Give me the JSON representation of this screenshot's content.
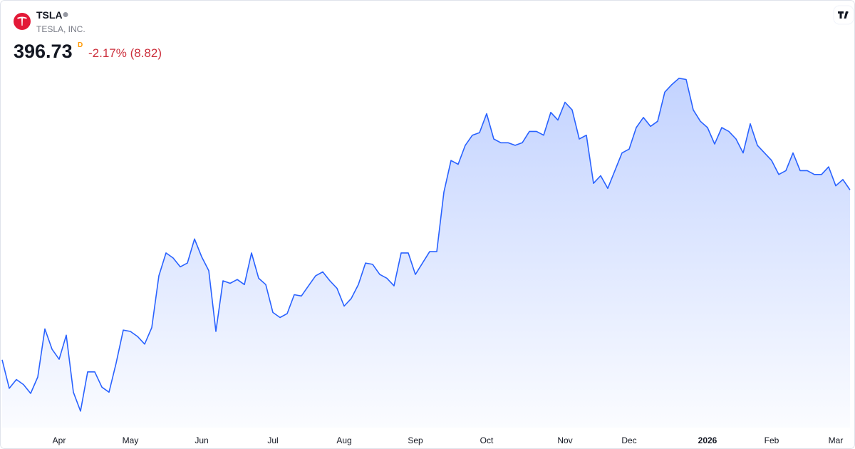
{
  "header": {
    "symbol": "TSLA",
    "name": "TESLA, INC.",
    "price": "396.73",
    "interval": "D",
    "change": "-2.17% (8.82)"
  },
  "chart_data": {
    "type": "area",
    "color": "#2962ff",
    "categories": [
      null,
      null,
      null,
      null,
      null,
      null,
      null,
      null,
      "Apr",
      null,
      null,
      null,
      null,
      null,
      null,
      null,
      null,
      null,
      "May",
      null,
      null,
      null,
      null,
      null,
      null,
      null,
      null,
      null,
      "Jun",
      null,
      null,
      null,
      null,
      null,
      null,
      null,
      null,
      null,
      "Jul",
      null,
      null,
      null,
      null,
      null,
      null,
      null,
      null,
      null,
      "Aug",
      null,
      null,
      null,
      null,
      null,
      null,
      null,
      null,
      null,
      "Sep",
      null,
      null,
      null,
      null,
      null,
      null,
      null,
      null,
      null,
      "Oct",
      null,
      null,
      null,
      null,
      null,
      null,
      null,
      null,
      null,
      null,
      "Nov",
      null,
      null,
      null,
      null,
      null,
      null,
      null,
      null,
      "Dec",
      null,
      null,
      null,
      null,
      null,
      null,
      null,
      null,
      null,
      null,
      "2026",
      null,
      null,
      null,
      null,
      null,
      null,
      null,
      null,
      "Feb",
      null,
      null,
      null,
      null,
      null,
      null,
      null,
      null,
      "Mar",
      null,
      null
    ],
    "values": [
      262.6,
      240,
      247,
      243,
      236,
      249,
      287,
      271,
      263,
      282,
      237,
      222,
      253,
      253,
      241,
      237,
      260,
      286,
      285,
      281,
      275,
      288,
      329,
      347,
      343,
      336,
      339,
      358,
      344,
      333,
      285,
      325,
      323,
      326,
      322,
      347,
      327,
      322,
      300,
      296,
      299,
      314,
      313,
      321,
      329,
      332,
      325,
      319,
      305,
      311,
      322,
      339,
      338,
      330,
      327,
      321,
      347,
      347,
      330,
      339,
      348,
      348,
      395,
      420,
      417,
      432,
      440,
      442,
      457,
      437,
      434,
      434,
      432,
      434,
      443,
      443,
      440,
      458,
      452,
      466,
      460,
      437,
      440,
      402,
      408,
      398,
      412,
      426,
      429,
      446,
      454,
      447,
      451,
      474,
      480,
      485,
      484,
      460,
      451,
      446,
      433,
      446,
      443,
      437,
      426,
      449,
      432,
      426,
      420,
      409,
      412,
      426,
      412,
      412,
      409,
      409,
      415,
      400,
      405,
      396.73
    ],
    "ylim": [
      209,
      495
    ]
  }
}
